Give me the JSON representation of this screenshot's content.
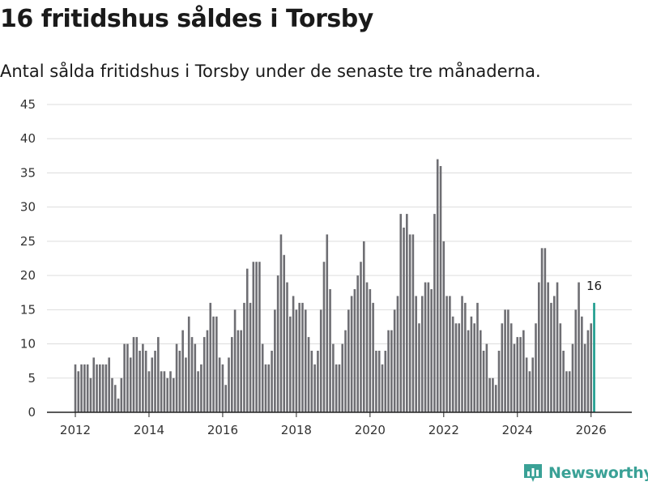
{
  "title": "16 fritidshus såldes i Torsby",
  "subtitle": "Antal sålda fritidshus i Torsby under de senaste tre månaderna.",
  "brand": {
    "name": "Newsworthy",
    "icon": "newsworthy-logo-icon",
    "color": "#3aa196"
  },
  "colors": {
    "bar": "#6e6e73",
    "highlight": "#1a9b8c",
    "grid": "#dddddd",
    "axis": "#222222"
  },
  "chart_data": {
    "type": "bar",
    "title": "16 fritidshus såldes i Torsby",
    "xlabel": "",
    "ylabel": "",
    "ylim": [
      0,
      45
    ],
    "yticks": [
      0,
      5,
      10,
      15,
      20,
      25,
      30,
      35,
      40,
      45
    ],
    "xticks": [
      2012,
      2014,
      2016,
      2018,
      2020,
      2022,
      2024,
      2026
    ],
    "x_start": 2012.0,
    "x_step": 0.0833333,
    "grid": true,
    "highlight_last": true,
    "last_label": "16",
    "values": [
      7,
      6,
      7,
      7,
      7,
      5,
      8,
      7,
      7,
      7,
      7,
      8,
      5,
      4,
      2,
      5,
      10,
      10,
      8,
      11,
      11,
      9,
      10,
      9,
      6,
      8,
      9,
      11,
      6,
      6,
      5,
      6,
      5,
      10,
      9,
      12,
      8,
      14,
      11,
      10,
      6,
      7,
      11,
      12,
      16,
      14,
      14,
      8,
      7,
      4,
      8,
      11,
      15,
      12,
      12,
      16,
      21,
      16,
      22,
      22,
      22,
      10,
      7,
      7,
      9,
      15,
      20,
      26,
      23,
      19,
      14,
      17,
      15,
      16,
      16,
      15,
      11,
      9,
      7,
      9,
      15,
      22,
      26,
      18,
      10,
      7,
      7,
      10,
      12,
      15,
      17,
      18,
      20,
      22,
      25,
      19,
      18,
      16,
      9,
      9,
      7,
      9,
      12,
      12,
      15,
      17,
      29,
      27,
      29,
      26,
      26,
      17,
      13,
      17,
      19,
      19,
      18,
      29,
      37,
      36,
      25,
      17,
      17,
      14,
      13,
      13,
      17,
      16,
      12,
      14,
      13,
      16,
      12,
      9,
      10,
      5,
      5,
      4,
      9,
      13,
      15,
      15,
      13,
      10,
      11,
      11,
      12,
      8,
      6,
      8,
      13,
      19,
      24,
      24,
      19,
      16,
      17,
      19,
      13,
      9,
      6,
      6,
      10,
      15,
      19,
      14,
      10,
      12,
      13,
      16
    ]
  }
}
